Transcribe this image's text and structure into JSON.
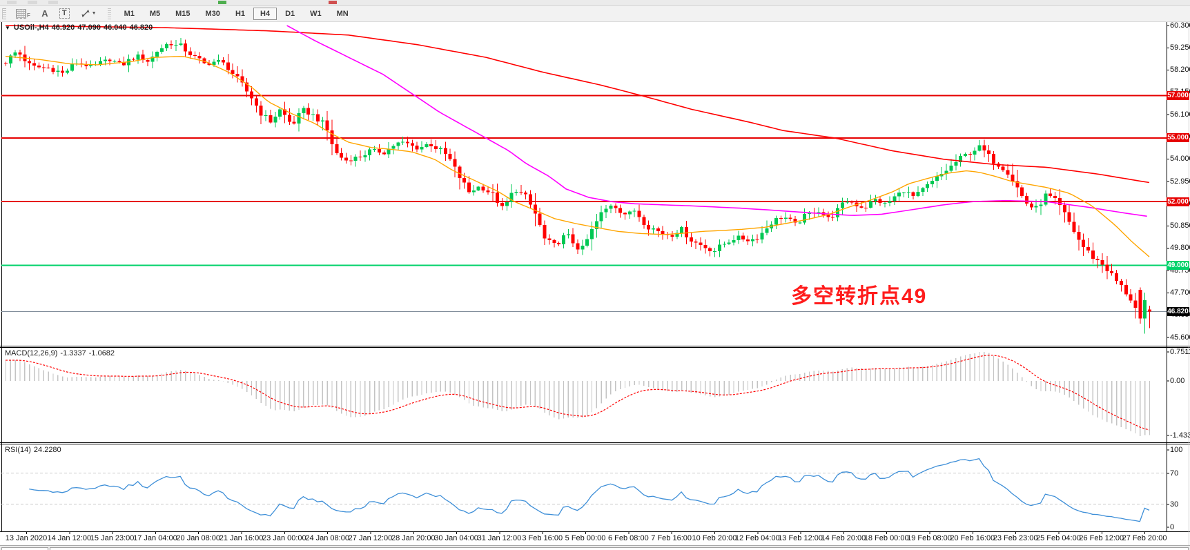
{
  "toolbar": {
    "tool_f": "F",
    "tool_a": "A",
    "tool_t": "T",
    "timeframes": [
      "M1",
      "M5",
      "M15",
      "M30",
      "H1",
      "H4",
      "D1",
      "W1",
      "MN"
    ],
    "active_timeframe": "H4"
  },
  "chart": {
    "symbol_label": "USOil-,H4",
    "ohlc": {
      "open": "46.920",
      "high": "47.090",
      "low": "46.040",
      "close": "46.820"
    },
    "annotation": {
      "text": "多空转折点49",
      "color": "#ff1c1c"
    },
    "price_axis": {
      "ticks": [
        "60.300",
        "59.250",
        "58.200",
        "57.150",
        "56.100",
        "55.050",
        "54.000",
        "52.950",
        "51.900",
        "50.850",
        "49.800",
        "48.750",
        "47.700",
        "46.650",
        "45.600"
      ]
    },
    "levels": [
      {
        "label": "57.000",
        "price": 57.0,
        "color": "#e60000",
        "line_width": 2
      },
      {
        "label": "55.000",
        "price": 55.0,
        "color": "#e60000",
        "line_width": 2
      },
      {
        "label": "52.000",
        "price": 52.0,
        "color": "#e60000",
        "line_width": 2
      },
      {
        "label": "49.000",
        "price": 49.0,
        "color": "#00d26a",
        "line_width": 2
      },
      {
        "label": "46.820",
        "price": 46.82,
        "color": "#000000",
        "line_width": 1,
        "line_color": "#7f8c99"
      }
    ],
    "time_axis": [
      "13 Jan 2020",
      "14 Jan 12:00",
      "15 Jan 23:00",
      "17 Jan 04:00",
      "20 Jan 08:00",
      "21 Jan 16:00",
      "23 Jan 00:00",
      "24 Jan 08:00",
      "27 Jan 12:00",
      "28 Jan 20:00",
      "30 Jan 04:00",
      "31 Jan 12:00",
      "3 Feb 16:00",
      "5 Feb 00:00",
      "6 Feb 08:00",
      "7 Feb 16:00",
      "10 Feb 20:00",
      "12 Feb 04:00",
      "13 Feb 12:00",
      "14 Feb 20:00",
      "18 Feb 00:00",
      "19 Feb 08:00",
      "20 Feb 16:00",
      "23 Feb 23:00",
      "25 Feb 04:00",
      "26 Feb 12:00",
      "27 Feb 20:00"
    ]
  },
  "macd": {
    "name": "MACD(12,26,9)",
    "value1": "-1.3337",
    "value2": "-1.0682",
    "scale": [
      "0.7511",
      "0.00",
      "-1.433"
    ]
  },
  "rsi": {
    "name": "RSI(14)",
    "value": "24.2280",
    "scale": [
      "100",
      "70",
      "30",
      "0"
    ],
    "levels": [
      70,
      30
    ]
  },
  "colors": {
    "candle_up": "#00c853",
    "candle_down": "#ff0000",
    "ma_red": "#ff0000",
    "ma_magenta": "#ff00ff",
    "ma_orange": "#ffa500",
    "macd_histogram": "#c4c4c4",
    "macd_signal": "#ff0000",
    "rsi_line": "#3e8fd8",
    "rsi_level_dash": "#c8c8c8",
    "bid_line": "#7f8c99"
  },
  "chart_data": {
    "type": "candlestick",
    "symbol": "USOil-",
    "timeframe": "H4",
    "n_candles": 243,
    "price_range": [
      45.6,
      60.3
    ],
    "last_ohlc": {
      "open": 46.92,
      "high": 47.09,
      "low": 46.04,
      "close": 46.82
    },
    "close_path": [
      [
        0.0,
        58.6
      ],
      [
        0.01,
        59.1
      ],
      [
        0.022,
        58.35
      ],
      [
        0.038,
        58.3
      ],
      [
        0.05,
        58.05
      ],
      [
        0.062,
        58.55
      ],
      [
        0.076,
        58.35
      ],
      [
        0.09,
        58.7
      ],
      [
        0.102,
        58.45
      ],
      [
        0.115,
        58.9
      ],
      [
        0.125,
        58.6
      ],
      [
        0.133,
        59.15
      ],
      [
        0.142,
        59.45
      ],
      [
        0.154,
        59.3
      ],
      [
        0.165,
        58.8
      ],
      [
        0.175,
        58.45
      ],
      [
        0.185,
        58.65
      ],
      [
        0.193,
        58.4
      ],
      [
        0.205,
        57.6
      ],
      [
        0.215,
        56.9
      ],
      [
        0.222,
        56.25
      ],
      [
        0.231,
        55.75
      ],
      [
        0.24,
        56.35
      ],
      [
        0.25,
        55.6
      ],
      [
        0.26,
        56.3
      ],
      [
        0.271,
        56.0
      ],
      [
        0.28,
        55.5
      ],
      [
        0.288,
        54.3
      ],
      [
        0.297,
        53.95
      ],
      [
        0.309,
        54.1
      ],
      [
        0.32,
        54.45
      ],
      [
        0.33,
        54.3
      ],
      [
        0.34,
        54.7
      ],
      [
        0.348,
        54.8
      ],
      [
        0.36,
        54.5
      ],
      [
        0.37,
        54.75
      ],
      [
        0.38,
        54.4
      ],
      [
        0.387,
        54.1
      ],
      [
        0.395,
        53.3
      ],
      [
        0.405,
        52.45
      ],
      [
        0.415,
        52.75
      ],
      [
        0.426,
        52.3
      ],
      [
        0.435,
        51.65
      ],
      [
        0.445,
        52.6
      ],
      [
        0.455,
        52.2
      ],
      [
        0.464,
        51.3
      ],
      [
        0.472,
        50.1
      ],
      [
        0.48,
        49.95
      ],
      [
        0.49,
        50.45
      ],
      [
        0.503,
        49.65
      ],
      [
        0.512,
        50.6
      ],
      [
        0.52,
        51.4
      ],
      [
        0.53,
        51.9
      ],
      [
        0.542,
        51.4
      ],
      [
        0.55,
        51.6
      ],
      [
        0.56,
        50.9
      ],
      [
        0.57,
        50.6
      ],
      [
        0.581,
        50.4
      ],
      [
        0.59,
        50.75
      ],
      [
        0.6,
        50.15
      ],
      [
        0.61,
        49.9
      ],
      [
        0.619,
        49.65
      ],
      [
        0.63,
        50.1
      ],
      [
        0.64,
        50.35
      ],
      [
        0.65,
        50.15
      ],
      [
        0.659,
        50.4
      ],
      [
        0.67,
        51.05
      ],
      [
        0.68,
        51.3
      ],
      [
        0.69,
        50.95
      ],
      [
        0.697,
        51.25
      ],
      [
        0.71,
        51.6
      ],
      [
        0.72,
        51.2
      ],
      [
        0.73,
        51.75
      ],
      [
        0.736,
        52.05
      ],
      [
        0.75,
        51.7
      ],
      [
        0.76,
        52.1
      ],
      [
        0.77,
        51.85
      ],
      [
        0.775,
        52.15
      ],
      [
        0.785,
        52.5
      ],
      [
        0.795,
        52.2
      ],
      [
        0.805,
        52.7
      ],
      [
        0.814,
        53.1
      ],
      [
        0.825,
        53.6
      ],
      [
        0.835,
        54.05
      ],
      [
        0.845,
        54.4
      ],
      [
        0.852,
        54.6
      ],
      [
        0.858,
        54.2
      ],
      [
        0.865,
        53.85
      ],
      [
        0.875,
        53.5
      ],
      [
        0.885,
        52.6
      ],
      [
        0.891,
        52.0
      ],
      [
        0.9,
        51.6
      ],
      [
        0.91,
        52.35
      ],
      [
        0.92,
        51.9
      ],
      [
        0.93,
        51.0
      ],
      [
        0.94,
        50.0
      ],
      [
        0.95,
        49.4
      ],
      [
        0.96,
        49.0
      ],
      [
        0.969,
        48.4
      ],
      [
        0.978,
        47.8
      ],
      [
        0.985,
        47.3
      ],
      [
        0.992,
        46.4
      ],
      [
        1.0,
        46.82
      ]
    ],
    "ma_lines": [
      {
        "name": "ma-red",
        "color": "#ff0000",
        "width": 1.6,
        "points": [
          [
            0,
            60.3
          ],
          [
            0.14,
            60.2
          ],
          [
            0.23,
            60.05
          ],
          [
            0.3,
            59.85
          ],
          [
            0.36,
            59.4
          ],
          [
            0.42,
            58.8
          ],
          [
            0.47,
            58.1
          ],
          [
            0.52,
            57.5
          ],
          [
            0.556,
            57.0
          ],
          [
            0.6,
            56.35
          ],
          [
            0.65,
            55.75
          ],
          [
            0.68,
            55.35
          ],
          [
            0.725,
            55.0
          ],
          [
            0.775,
            54.4
          ],
          [
            0.82,
            54.0
          ],
          [
            0.865,
            53.75
          ],
          [
            0.91,
            53.62
          ],
          [
            0.955,
            53.3
          ],
          [
            1.0,
            52.9
          ]
        ]
      },
      {
        "name": "ma-magenta",
        "color": "#ff00ff",
        "width": 1.6,
        "points": [
          [
            0.246,
            60.3
          ],
          [
            0.27,
            59.6
          ],
          [
            0.3,
            58.8
          ],
          [
            0.33,
            58.0
          ],
          [
            0.355,
            57.1
          ],
          [
            0.38,
            56.2
          ],
          [
            0.41,
            55.3
          ],
          [
            0.44,
            54.4
          ],
          [
            0.455,
            53.8
          ],
          [
            0.475,
            53.2
          ],
          [
            0.49,
            52.6
          ],
          [
            0.51,
            52.2
          ],
          [
            0.53,
            52.0
          ],
          [
            0.55,
            51.9
          ],
          [
            0.575,
            51.85
          ],
          [
            0.6,
            51.8
          ],
          [
            0.64,
            51.7
          ],
          [
            0.67,
            51.6
          ],
          [
            0.71,
            51.45
          ],
          [
            0.74,
            51.35
          ],
          [
            0.765,
            51.4
          ],
          [
            0.79,
            51.6
          ],
          [
            0.82,
            51.85
          ],
          [
            0.845,
            52.0
          ],
          [
            0.875,
            52.05
          ],
          [
            0.91,
            52.0
          ],
          [
            0.945,
            51.75
          ],
          [
            0.98,
            51.45
          ],
          [
            1.0,
            51.3
          ]
        ]
      },
      {
        "name": "ma-orange",
        "color": "#ffa500",
        "width": 1.4,
        "points": [
          [
            0,
            58.85
          ],
          [
            0.03,
            58.7
          ],
          [
            0.055,
            58.5
          ],
          [
            0.08,
            58.45
          ],
          [
            0.11,
            58.6
          ],
          [
            0.13,
            58.8
          ],
          [
            0.155,
            58.85
          ],
          [
            0.175,
            58.6
          ],
          [
            0.195,
            58.1
          ],
          [
            0.215,
            57.4
          ],
          [
            0.23,
            56.7
          ],
          [
            0.25,
            56.15
          ],
          [
            0.27,
            55.7
          ],
          [
            0.285,
            55.2
          ],
          [
            0.3,
            54.8
          ],
          [
            0.32,
            54.55
          ],
          [
            0.34,
            54.45
          ],
          [
            0.355,
            54.35
          ],
          [
            0.375,
            54.0
          ],
          [
            0.39,
            53.5
          ],
          [
            0.41,
            53.0
          ],
          [
            0.43,
            52.5
          ],
          [
            0.445,
            52.0
          ],
          [
            0.465,
            51.55
          ],
          [
            0.48,
            51.2
          ],
          [
            0.5,
            50.95
          ],
          [
            0.52,
            50.75
          ],
          [
            0.535,
            50.6
          ],
          [
            0.555,
            50.5
          ],
          [
            0.575,
            50.45
          ],
          [
            0.59,
            50.5
          ],
          [
            0.61,
            50.6
          ],
          [
            0.63,
            50.65
          ],
          [
            0.645,
            50.7
          ],
          [
            0.665,
            50.8
          ],
          [
            0.68,
            50.95
          ],
          [
            0.7,
            51.15
          ],
          [
            0.72,
            51.4
          ],
          [
            0.735,
            51.7
          ],
          [
            0.755,
            52.05
          ],
          [
            0.775,
            52.45
          ],
          [
            0.79,
            52.85
          ],
          [
            0.81,
            53.15
          ],
          [
            0.825,
            53.35
          ],
          [
            0.84,
            53.45
          ],
          [
            0.85,
            53.4
          ],
          [
            0.865,
            53.2
          ],
          [
            0.88,
            52.95
          ],
          [
            0.91,
            52.67
          ],
          [
            0.93,
            52.4
          ],
          [
            0.95,
            51.8
          ],
          [
            0.97,
            50.9
          ],
          [
            0.985,
            50.1
          ],
          [
            1.0,
            49.4
          ]
        ]
      }
    ],
    "macd_params": {
      "fast": 12,
      "slow": 26,
      "signal": 9,
      "scale_max": 0.7511,
      "scale_min": -1.433
    },
    "rsi_params": {
      "period": 14,
      "last_value": 24.228,
      "levels": [
        70,
        30
      ]
    }
  }
}
